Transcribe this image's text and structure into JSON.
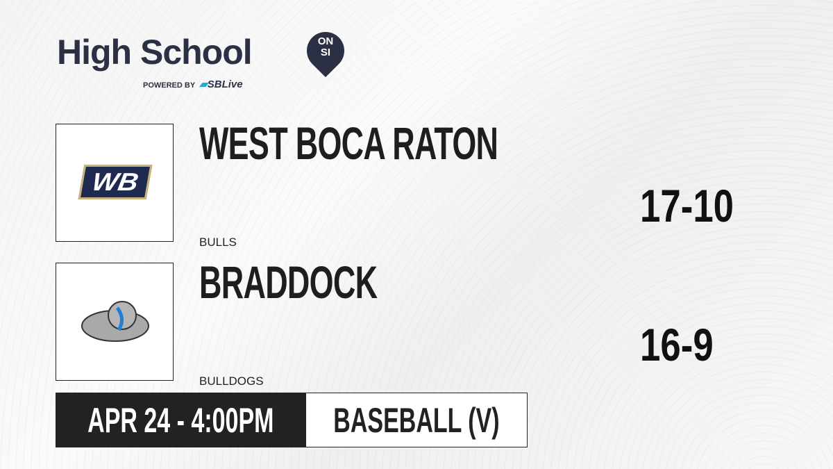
{
  "brand": {
    "title": "High School",
    "badge_top": "ON",
    "badge_bottom": "SI",
    "powered_by": "POWERED BY",
    "partner": "SBLive"
  },
  "teams": [
    {
      "name": "WEST BOCA RATON",
      "mascot": "BULLS",
      "record": "17-10",
      "logo_text": "WB",
      "logo_color": "#1e2a4f"
    },
    {
      "name": "BRADDOCK",
      "mascot": "BULLDOGS",
      "record": "16-9",
      "logo_icon": "bulldog-icon"
    }
  ],
  "game": {
    "datetime": "APR 24 - 4:00PM",
    "sport": "BASEBALL (V)"
  }
}
